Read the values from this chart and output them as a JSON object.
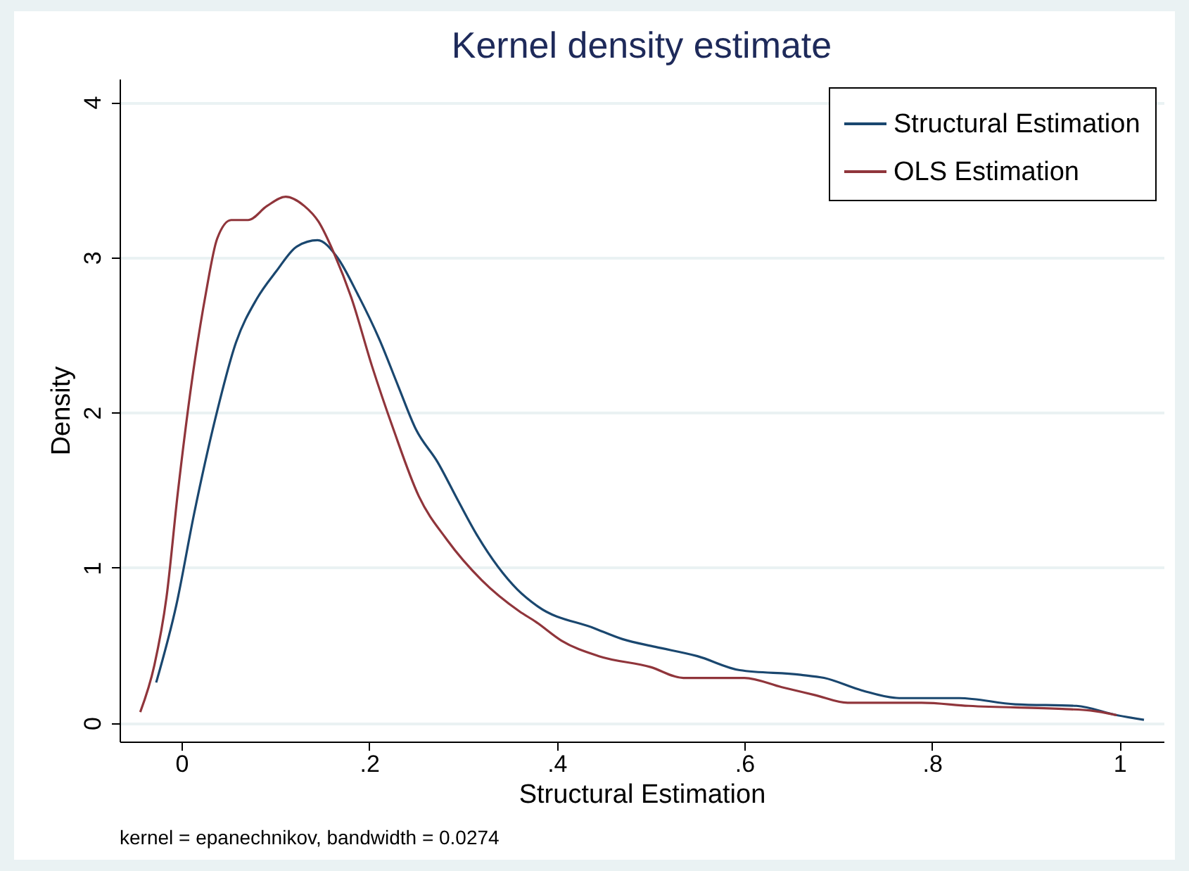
{
  "chart_data": {
    "type": "line",
    "title": "Kernel density estimate",
    "xlabel": "Structural Estimation",
    "ylabel": "Density",
    "annotations": [
      "kernel = epanechnikov, bandwidth = 0.0274"
    ],
    "xlim": [
      -0.066,
      1.047
    ],
    "ylim": [
      -0.12,
      4.15
    ],
    "xticks": [
      0,
      {
        "value": 0.2,
        "label": ".2"
      },
      {
        "value": 0.4,
        "label": ".4"
      },
      {
        "value": 0.6,
        "label": ".6"
      },
      {
        "value": 0.8,
        "label": ".8"
      },
      1
    ],
    "yticks": [
      0,
      1,
      2,
      3,
      4
    ],
    "grid": "y",
    "legend": "top right",
    "line_style": "solid",
    "marker": "none",
    "series": [
      {
        "name": "Structural Estimation",
        "color": "#1a476f",
        "x": [
          -0.027,
          -0.0055,
          0.0135,
          0.036,
          0.058,
          0.08,
          0.101,
          0.123,
          0.145,
          0.166,
          0.188,
          0.211,
          0.231,
          0.25,
          0.273,
          0.295,
          0.315,
          0.358,
          0.38,
          0.44,
          0.47,
          0.505,
          0.55,
          0.595,
          0.66,
          0.685,
          0.725,
          0.765,
          0.829,
          0.889,
          0.954,
          0.997,
          1.026
        ],
        "values": [
          0.26,
          0.76,
          1.35,
          1.96,
          2.45,
          2.73,
          2.91,
          3.07,
          3.11,
          3.0,
          2.76,
          2.47,
          2.17,
          1.89,
          1.68,
          1.43,
          1.21,
          0.86,
          0.75,
          0.61,
          0.54,
          0.49,
          0.43,
          0.34,
          0.31,
          0.29,
          0.21,
          0.16,
          0.16,
          0.12,
          0.11,
          0.05,
          0.02
        ]
      },
      {
        "name": "OLS Estimation",
        "color": "#90353b",
        "x": [
          -0.044,
          -0.029,
          -0.016,
          -0.004,
          0.011,
          0.026,
          0.038,
          0.053,
          0.071,
          0.091,
          0.111,
          0.131,
          0.146,
          0.163,
          0.181,
          0.203,
          0.226,
          0.253,
          0.283,
          0.32,
          0.36,
          0.378,
          0.405,
          0.445,
          0.5,
          0.535,
          0.6,
          0.64,
          0.675,
          0.71,
          0.789,
          0.839,
          0.939,
          0.969,
          0.997
        ],
        "values": [
          0.07,
          0.37,
          0.81,
          1.48,
          2.2,
          2.77,
          3.12,
          3.24,
          3.24,
          3.33,
          3.39,
          3.33,
          3.23,
          3.02,
          2.74,
          2.3,
          1.89,
          1.46,
          1.18,
          0.92,
          0.72,
          0.65,
          0.53,
          0.43,
          0.36,
          0.29,
          0.29,
          0.23,
          0.18,
          0.13,
          0.13,
          0.11,
          0.09,
          0.08,
          0.05
        ]
      }
    ]
  }
}
